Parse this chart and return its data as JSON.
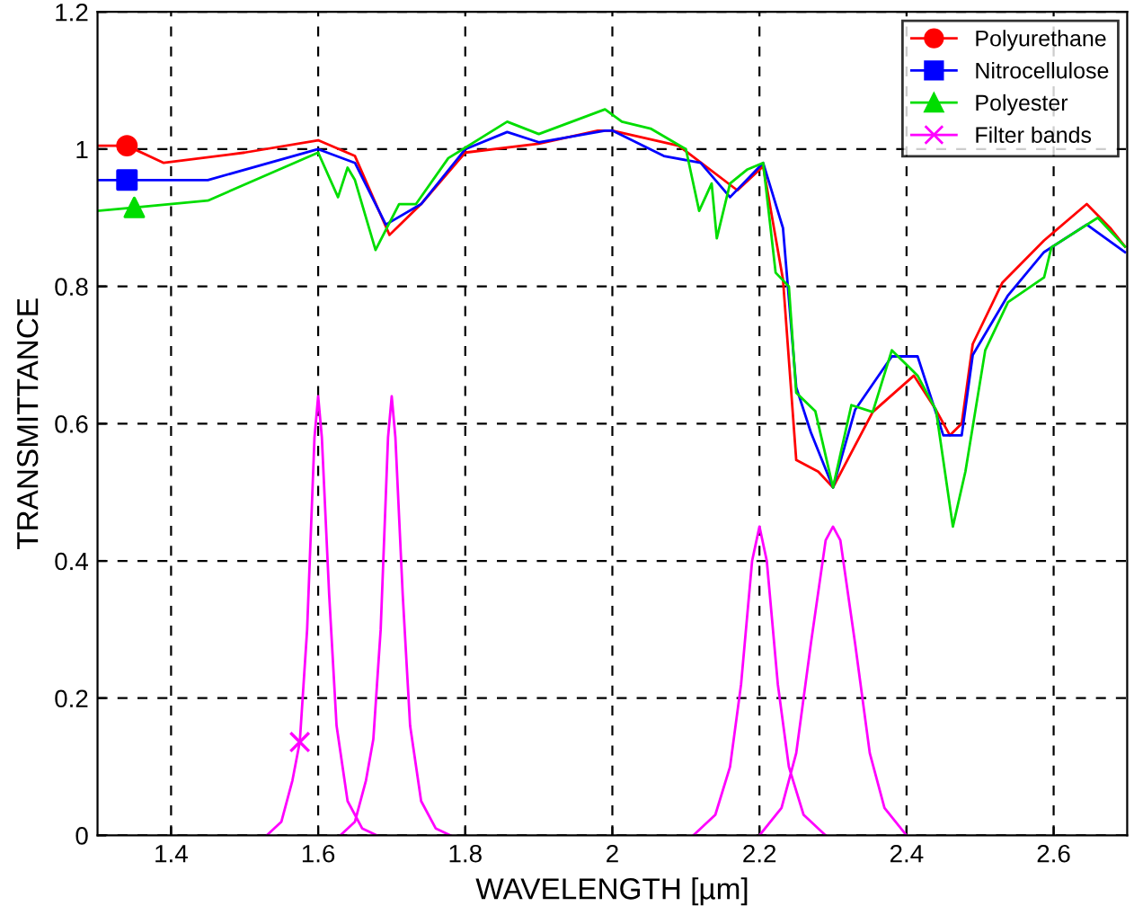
{
  "chart_data": {
    "type": "line",
    "xlabel": "WAVELENGTH [µm]",
    "ylabel": "TRANSMITTANCE",
    "xlim": [
      1.3,
      2.7
    ],
    "ylim": [
      0,
      1.2
    ],
    "xticks": [
      1.4,
      1.6,
      1.8,
      2,
      2.2,
      2.4,
      2.6
    ],
    "yticks": [
      0,
      0.2,
      0.4,
      0.6,
      0.8,
      1,
      1.2
    ],
    "grid": true,
    "legend": "top right",
    "line_style": "solid",
    "series": [
      {
        "name": "Polyurethane",
        "color": "#ff0000",
        "marker": "none",
        "x": [
          1.3,
          1.34,
          1.39,
          1.5,
          1.6,
          1.65,
          1.697,
          1.74,
          1.8,
          1.9,
          1.98,
          2.0,
          2.09,
          2.17,
          2.205,
          2.232,
          2.25,
          2.28,
          2.3,
          2.354,
          2.41,
          2.44,
          2.459,
          2.475,
          2.49,
          2.53,
          2.587,
          2.645,
          2.677,
          2.697
        ],
        "values": [
          1.005,
          1.005,
          0.98,
          0.995,
          1.013,
          0.99,
          0.875,
          0.92,
          0.995,
          1.008,
          1.027,
          1.027,
          1.005,
          0.94,
          0.975,
          0.81,
          0.547,
          0.53,
          0.507,
          0.617,
          0.67,
          0.62,
          0.583,
          0.6,
          0.716,
          0.805,
          0.867,
          0.92,
          0.885,
          0.858
        ]
      },
      {
        "name": "Nitrocellulose",
        "color": "#0000ff",
        "marker": "none",
        "x": [
          1.3,
          1.34,
          1.45,
          1.6,
          1.65,
          1.692,
          1.74,
          1.8,
          1.857,
          1.9,
          1.99,
          2.0,
          2.07,
          2.12,
          2.16,
          2.205,
          2.232,
          2.25,
          2.27,
          2.3,
          2.33,
          2.38,
          2.415,
          2.45,
          2.475,
          2.49,
          2.538,
          2.587,
          2.645,
          2.697
        ],
        "values": [
          0.955,
          0.955,
          0.955,
          1.0,
          0.98,
          0.89,
          0.92,
          1.0,
          1.025,
          1.01,
          1.027,
          1.027,
          0.99,
          0.98,
          0.93,
          0.98,
          0.885,
          0.653,
          0.587,
          0.507,
          0.62,
          0.698,
          0.698,
          0.583,
          0.583,
          0.7,
          0.787,
          0.85,
          0.89,
          0.85
        ]
      },
      {
        "name": "Polyester",
        "color": "#00dd00",
        "marker": "none",
        "x": [
          1.3,
          1.35,
          1.45,
          1.6,
          1.627,
          1.64,
          1.65,
          1.678,
          1.71,
          1.733,
          1.777,
          1.857,
          1.9,
          1.99,
          2.013,
          2.052,
          2.1,
          2.118,
          2.135,
          2.142,
          2.16,
          2.183,
          2.205,
          2.222,
          2.24,
          2.25,
          2.276,
          2.3,
          2.325,
          2.354,
          2.38,
          2.415,
          2.44,
          2.463,
          2.48,
          2.507,
          2.538,
          2.587,
          2.597,
          2.66,
          2.697
        ],
        "values": [
          0.91,
          0.915,
          0.925,
          0.995,
          0.93,
          0.973,
          0.955,
          0.853,
          0.92,
          0.92,
          0.987,
          1.04,
          1.022,
          1.058,
          1.04,
          1.03,
          1.0,
          0.91,
          0.95,
          0.87,
          0.95,
          0.97,
          0.98,
          0.82,
          0.8,
          0.645,
          0.618,
          0.507,
          0.627,
          0.617,
          0.707,
          0.67,
          0.62,
          0.45,
          0.53,
          0.707,
          0.777,
          0.813,
          0.857,
          0.9,
          0.858
        ]
      },
      {
        "name": "Filter bands",
        "color": "#ff00ff",
        "marker": "none",
        "x": [
          1.53,
          1.55,
          1.565,
          1.575,
          1.585,
          1.595,
          1.6,
          1.605,
          1.615,
          1.625,
          1.64,
          1.66,
          1.68,
          null,
          1.63,
          1.65,
          1.665,
          1.675,
          1.685,
          1.695,
          1.7,
          1.705,
          1.715,
          1.725,
          1.74,
          1.76,
          1.78,
          null,
          2.11,
          2.14,
          2.16,
          2.175,
          2.19,
          2.2,
          2.21,
          2.225,
          2.24,
          2.26,
          2.29,
          null,
          2.2,
          2.23,
          2.25,
          2.27,
          2.29,
          2.3,
          2.31,
          2.33,
          2.35,
          2.37,
          2.4
        ],
        "values": [
          0,
          0.02,
          0.08,
          0.136,
          0.3,
          0.58,
          0.64,
          0.58,
          0.35,
          0.16,
          0.05,
          0.01,
          0,
          null,
          0,
          0.02,
          0.08,
          0.14,
          0.3,
          0.58,
          0.64,
          0.58,
          0.35,
          0.16,
          0.05,
          0.01,
          0,
          null,
          0,
          0.03,
          0.1,
          0.22,
          0.4,
          0.45,
          0.4,
          0.22,
          0.1,
          0.03,
          0,
          null,
          0,
          0.04,
          0.12,
          0.28,
          0.43,
          0.45,
          0.43,
          0.28,
          0.12,
          0.04,
          0
        ]
      },
      {
        "type": "scatter",
        "color": "#ff0000",
        "marker": "circle",
        "x": [
          1.34
        ],
        "values": [
          1.005
        ]
      },
      {
        "type": "scatter",
        "color": "#0000ff",
        "marker": "square",
        "x": [
          1.34
        ],
        "values": [
          0.955
        ]
      },
      {
        "type": "scatter",
        "color": "#00dd00",
        "marker": "triangle",
        "x": [
          1.35
        ],
        "values": [
          0.915
        ]
      },
      {
        "type": "scatter",
        "color": "#ff00ff",
        "marker": "cross",
        "x": [
          1.575
        ],
        "values": [
          0.136
        ]
      }
    ]
  }
}
